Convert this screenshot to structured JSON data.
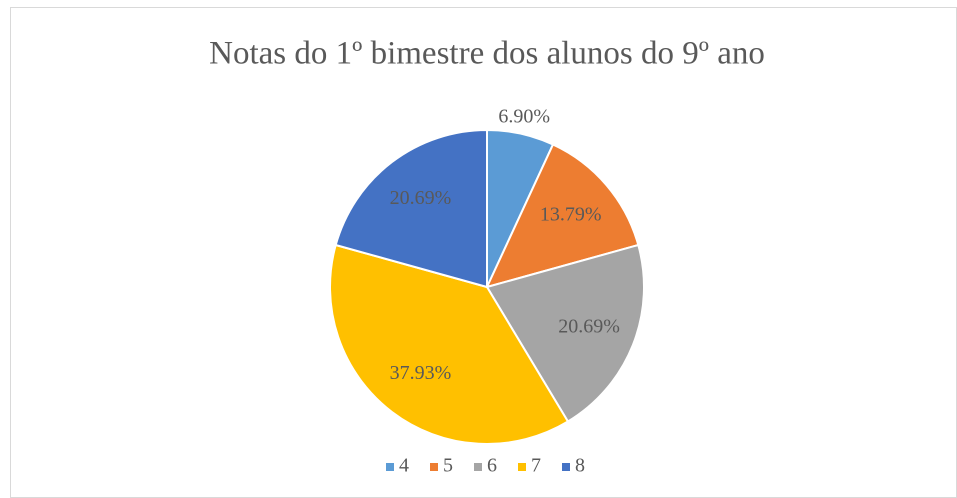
{
  "chart_data": {
    "type": "pie",
    "title": "Notas do 1º bimestre dos alunos do 9º ano",
    "categories": [
      "4",
      "5",
      "6",
      "7",
      "8"
    ],
    "values": [
      6.9,
      13.79,
      20.69,
      37.93,
      20.69
    ],
    "value_labels": [
      "6.90%",
      "13.79%",
      "20.69%",
      "37.93%",
      "20.69%"
    ],
    "colors": [
      "#5b9bd5",
      "#ed7d31",
      "#a5a5a5",
      "#ffc000",
      "#4472c4"
    ],
    "legend": "bottom"
  }
}
